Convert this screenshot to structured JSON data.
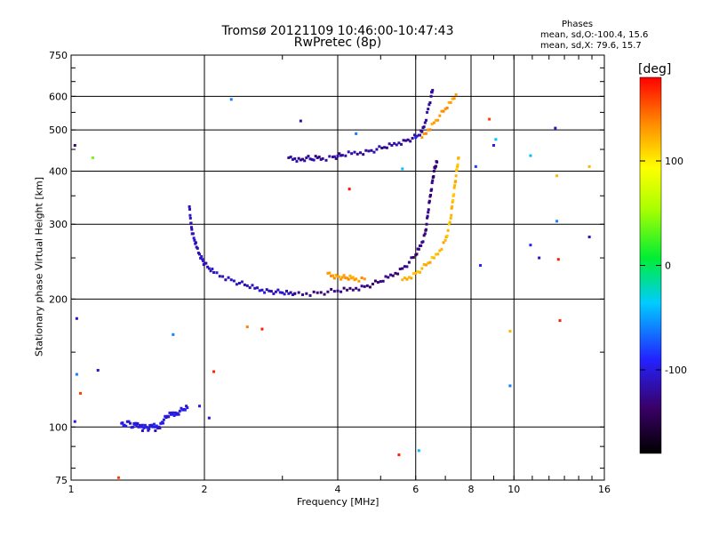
{
  "chart_data": {
    "type": "scatter",
    "title": "Tromsø 20121109 10:46:00-10:47:43",
    "subtitle": "RwPretec (8p)",
    "xlabel": "Frequency [MHz]",
    "ylabel": "Stationary phase Virtual Height [km]",
    "x_scale": "log",
    "y_scale": "log",
    "xlim": [
      1,
      16
    ],
    "ylim": [
      75,
      750
    ],
    "x_ticks": [
      1,
      2,
      4,
      6,
      8,
      10,
      16
    ],
    "x_tick_labels": [
      "1",
      "2",
      "4",
      "6",
      "8",
      "10",
      "16"
    ],
    "y_ticks": [
      75,
      100,
      200,
      300,
      400,
      500,
      600,
      750
    ],
    "y_tick_labels": [
      "75",
      "100",
      "200",
      "300",
      "400",
      "500",
      "600",
      "750"
    ],
    "grid": true,
    "stats": {
      "heading": "Phases",
      "line1": "mean, sd,O:-100.4, 15.6",
      "line2": "mean, sd,X:  79.6, 15.7"
    },
    "colorbar": {
      "label": "[deg]",
      "min": -180,
      "max": 180,
      "ticks": [
        100,
        0,
        -100
      ],
      "tick_labels": [
        "100",
        "0",
        "-100"
      ]
    },
    "traces": [
      {
        "phase": -100,
        "points": [
          [
            1.3,
            102
          ],
          [
            1.32,
            101
          ],
          [
            1.35,
            103
          ],
          [
            1.38,
            100
          ],
          [
            1.4,
            102
          ],
          [
            1.42,
            100
          ],
          [
            1.45,
            101
          ],
          [
            1.48,
            100
          ],
          [
            1.5,
            99
          ],
          [
            1.52,
            101
          ],
          [
            1.55,
            100
          ],
          [
            1.58,
            100
          ],
          [
            1.6,
            102
          ],
          [
            1.62,
            104
          ],
          [
            1.65,
            106
          ],
          [
            1.68,
            107
          ],
          [
            1.7,
            108
          ],
          [
            1.73,
            107
          ],
          [
            1.76,
            109
          ],
          [
            1.8,
            110
          ],
          [
            1.83,
            111
          ]
        ]
      },
      {
        "phase": -110,
        "points": [
          [
            1.85,
            330
          ],
          [
            1.86,
            310
          ],
          [
            1.87,
            295
          ],
          [
            1.88,
            285
          ],
          [
            1.9,
            275
          ],
          [
            1.92,
            265
          ],
          [
            1.95,
            255
          ],
          [
            1.98,
            248
          ],
          [
            2.0,
            242
          ],
          [
            2.05,
            236
          ],
          [
            2.1,
            231
          ],
          [
            2.2,
            226
          ],
          [
            2.3,
            222
          ],
          [
            2.4,
            218
          ],
          [
            2.5,
            215
          ],
          [
            2.6,
            212
          ],
          [
            2.7,
            210
          ],
          [
            2.8,
            209
          ],
          [
            2.9,
            208
          ],
          [
            3.0,
            207
          ],
          [
            3.1,
            206
          ],
          [
            3.2,
            206
          ]
        ]
      },
      {
        "phase": -130,
        "points": [
          [
            3.2,
            206
          ],
          [
            3.4,
            206
          ],
          [
            3.6,
            207
          ],
          [
            3.8,
            208
          ],
          [
            4.0,
            209
          ],
          [
            4.2,
            210
          ],
          [
            4.4,
            212
          ],
          [
            4.6,
            214
          ],
          [
            4.8,
            217
          ],
          [
            5.0,
            220
          ],
          [
            5.2,
            225
          ],
          [
            5.4,
            230
          ],
          [
            5.6,
            236
          ],
          [
            5.8,
            244
          ],
          [
            6.0,
            254
          ],
          [
            6.1,
            262
          ],
          [
            6.2,
            272
          ],
          [
            6.3,
            285
          ],
          [
            6.35,
            300
          ],
          [
            6.4,
            320
          ],
          [
            6.45,
            340
          ],
          [
            6.5,
            360
          ],
          [
            6.55,
            380
          ],
          [
            6.6,
            400
          ],
          [
            6.65,
            410
          ],
          [
            6.7,
            420
          ]
        ]
      },
      {
        "phase": 120,
        "points": [
          [
            5.6,
            222
          ],
          [
            5.8,
            225
          ],
          [
            6.0,
            230
          ],
          [
            6.2,
            236
          ],
          [
            6.4,
            243
          ],
          [
            6.6,
            250
          ],
          [
            6.8,
            260
          ],
          [
            7.0,
            275
          ],
          [
            7.1,
            290
          ],
          [
            7.2,
            310
          ],
          [
            7.25,
            330
          ],
          [
            7.3,
            350
          ],
          [
            7.35,
            370
          ],
          [
            7.4,
            390
          ],
          [
            7.45,
            410
          ],
          [
            7.5,
            430
          ]
        ]
      },
      {
        "phase": 130,
        "points": [
          [
            3.8,
            230
          ],
          [
            3.9,
            227
          ],
          [
            4.0,
            226
          ],
          [
            4.1,
            225
          ],
          [
            4.2,
            224
          ],
          [
            4.3,
            224
          ],
          [
            4.4,
            223
          ],
          [
            4.6,
            223
          ]
        ]
      },
      {
        "phase": -120,
        "points": [
          [
            3.1,
            430
          ],
          [
            3.2,
            428
          ],
          [
            3.3,
            425
          ],
          [
            3.4,
            430
          ],
          [
            3.5,
            426
          ],
          [
            3.6,
            430
          ],
          [
            3.7,
            428
          ],
          [
            3.9,
            432
          ],
          [
            4.0,
            434
          ],
          [
            4.1,
            436
          ],
          [
            4.3,
            440
          ],
          [
            4.5,
            442
          ],
          [
            4.7,
            446
          ],
          [
            4.9,
            450
          ],
          [
            5.1,
            455
          ],
          [
            5.3,
            460
          ],
          [
            5.5,
            466
          ],
          [
            5.7,
            472
          ],
          [
            5.9,
            478
          ],
          [
            6.1,
            486
          ],
          [
            6.2,
            495
          ],
          [
            6.3,
            520
          ],
          [
            6.4,
            560
          ],
          [
            6.5,
            600
          ],
          [
            6.55,
            620
          ]
        ]
      },
      {
        "phase": 130,
        "points": [
          [
            6.2,
            480
          ],
          [
            6.4,
            500
          ],
          [
            6.6,
            520
          ],
          [
            6.8,
            540
          ],
          [
            7.0,
            560
          ],
          [
            7.2,
            580
          ],
          [
            7.4,
            605
          ]
        ]
      }
    ],
    "scatter": [
      {
        "x": 1.02,
        "y": 460,
        "phase": -130
      },
      {
        "x": 1.02,
        "y": 103,
        "phase": -100
      },
      {
        "x": 1.03,
        "y": 180,
        "phase": -110
      },
      {
        "x": 1.03,
        "y": 133,
        "phase": -60
      },
      {
        "x": 1.05,
        "y": 120,
        "phase": 160
      },
      {
        "x": 1.12,
        "y": 430,
        "phase": 40
      },
      {
        "x": 1.15,
        "y": 136,
        "phase": -110
      },
      {
        "x": 1.28,
        "y": 76,
        "phase": 160
      },
      {
        "x": 1.45,
        "y": 98,
        "phase": -110
      },
      {
        "x": 1.55,
        "y": 98,
        "phase": -110
      },
      {
        "x": 1.7,
        "y": 165,
        "phase": -60
      },
      {
        "x": 1.95,
        "y": 112,
        "phase": -100
      },
      {
        "x": 2.05,
        "y": 105,
        "phase": -110
      },
      {
        "x": 2.1,
        "y": 135,
        "phase": 170
      },
      {
        "x": 2.3,
        "y": 590,
        "phase": -60
      },
      {
        "x": 2.5,
        "y": 172,
        "phase": 140
      },
      {
        "x": 2.7,
        "y": 170,
        "phase": 170
      },
      {
        "x": 3.3,
        "y": 525,
        "phase": -120
      },
      {
        "x": 4.25,
        "y": 363,
        "phase": 175
      },
      {
        "x": 4.4,
        "y": 490,
        "phase": -60
      },
      {
        "x": 5.5,
        "y": 86,
        "phase": 170
      },
      {
        "x": 5.6,
        "y": 405,
        "phase": -40
      },
      {
        "x": 6.0,
        "y": 480,
        "phase": -90
      },
      {
        "x": 6.1,
        "y": 88,
        "phase": -40
      },
      {
        "x": 8.2,
        "y": 410,
        "phase": -80
      },
      {
        "x": 8.4,
        "y": 240,
        "phase": -90
      },
      {
        "x": 8.8,
        "y": 530,
        "phase": 160
      },
      {
        "x": 9.0,
        "y": 460,
        "phase": -100
      },
      {
        "x": 9.1,
        "y": 475,
        "phase": -40
      },
      {
        "x": 9.8,
        "y": 168,
        "phase": 120
      },
      {
        "x": 9.8,
        "y": 125,
        "phase": -60
      },
      {
        "x": 10.9,
        "y": 435,
        "phase": -40
      },
      {
        "x": 10.9,
        "y": 268,
        "phase": -90
      },
      {
        "x": 11.4,
        "y": 250,
        "phase": -110
      },
      {
        "x": 12.4,
        "y": 505,
        "phase": -110
      },
      {
        "x": 12.5,
        "y": 390,
        "phase": 120
      },
      {
        "x": 12.5,
        "y": 305,
        "phase": -60
      },
      {
        "x": 12.6,
        "y": 248,
        "phase": 170
      },
      {
        "x": 12.7,
        "y": 178,
        "phase": 170
      },
      {
        "x": 14.8,
        "y": 410,
        "phase": 120
      },
      {
        "x": 14.8,
        "y": 280,
        "phase": -110
      }
    ]
  }
}
